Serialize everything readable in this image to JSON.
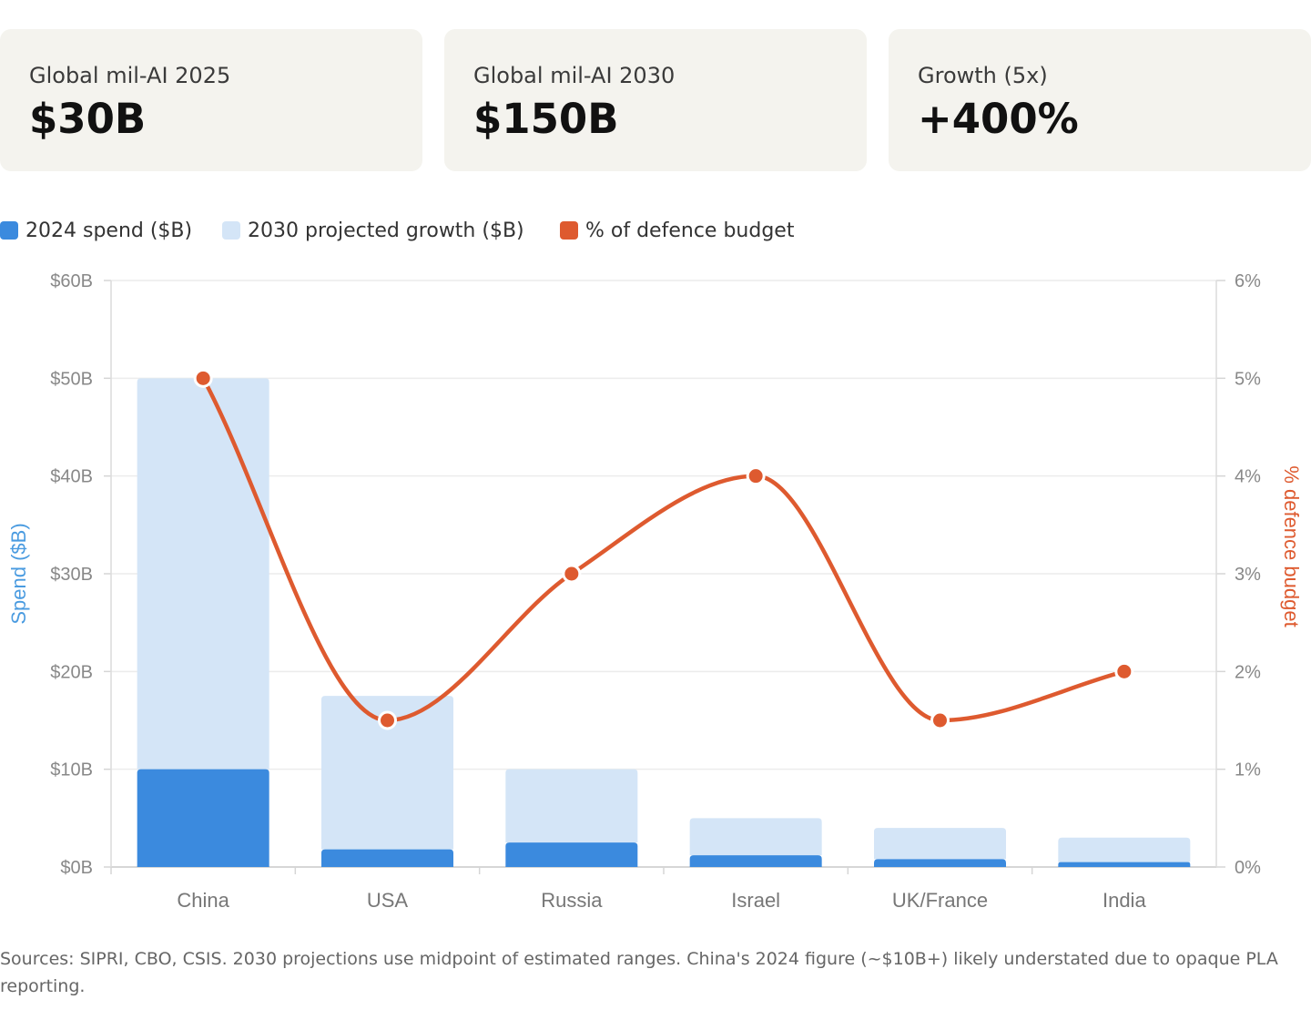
{
  "stats": [
    {
      "label": "Global mil-AI 2025",
      "value": "$30B"
    },
    {
      "label": "Global mil-AI 2030",
      "value": "$150B"
    },
    {
      "label": "Growth (5x)",
      "value": "+400%"
    }
  ],
  "legend": [
    {
      "label": "2024 spend ($B)",
      "color": "#3b8ade"
    },
    {
      "label": "2030 projected growth ($B)",
      "color": "#d4e5f7"
    },
    {
      "label": "% of defence budget",
      "color": "#de5a2f"
    }
  ],
  "chart_data": {
    "type": "bar",
    "stacked": true,
    "categories": [
      "China",
      "USA",
      "Russia",
      "Israel",
      "UK/France",
      "India"
    ],
    "series": [
      {
        "name": "2024 spend ($B)",
        "axis": "left",
        "values": [
          10,
          1.8,
          2.5,
          1.2,
          0.8,
          0.5
        ],
        "color": "#3b8ade"
      },
      {
        "name": "2030 projected growth ($B)",
        "axis": "left",
        "values": [
          40,
          15.7,
          7.5,
          3.8,
          3.2,
          2.5
        ],
        "color": "#d4e5f7"
      },
      {
        "name": "% of defence budget",
        "axis": "right",
        "type": "line",
        "values": [
          5,
          1.5,
          3,
          4,
          1.5,
          2
        ],
        "color": "#de5a2f"
      }
    ],
    "ylabel": "Spend ($B)",
    "y2label": "% defence budget",
    "ylim": [
      0,
      60
    ],
    "y2lim": [
      0,
      6
    ],
    "yticks": [
      "$0B",
      "$10B",
      "$20B",
      "$30B",
      "$40B",
      "$50B",
      "$60B"
    ],
    "y2ticks": [
      "0%",
      "1%",
      "2%",
      "3%",
      "4%",
      "5%",
      "6%"
    ],
    "ylabel_color": "#4a9be0",
    "y2label_color": "#de5a2f",
    "grid": true,
    "legend_position": "top-left"
  },
  "source_note": "Sources: SIPRI, CBO, CSIS. 2030 projections use midpoint of estimated ranges. China's 2024 figure (~$10B+) likely understated due to opaque PLA reporting."
}
